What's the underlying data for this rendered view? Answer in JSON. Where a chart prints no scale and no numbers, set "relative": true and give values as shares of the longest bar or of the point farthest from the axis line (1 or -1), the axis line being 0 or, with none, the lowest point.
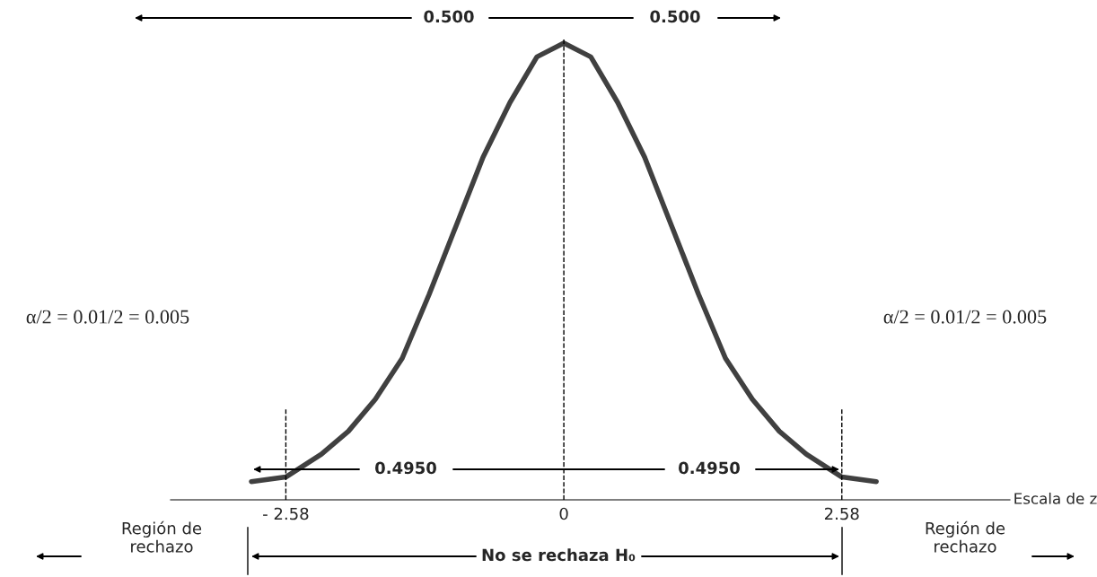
{
  "chart_data": {
    "type": "line",
    "relative": true,
    "xlabel": "Escala de z",
    "x": [
      -2.9,
      -2.58,
      -2.25,
      -2,
      -1.75,
      -1.5,
      -1.25,
      -1,
      -0.75,
      -0.5,
      -0.25,
      0,
      0.25,
      0.5,
      0.75,
      1,
      1.25,
      1.5,
      1.75,
      2,
      2.25,
      2.58,
      2.9
    ],
    "series": [
      {
        "color": "#404040",
        "values": [
          0.04,
          0.05,
          0.1,
          0.15,
          0.22,
          0.31,
          0.45,
          0.6,
          0.75,
          0.87,
          0.97,
          1,
          0.97,
          0.87,
          0.75,
          0.6,
          0.45,
          0.31,
          0.22,
          0.15,
          0.1,
          0.05,
          0.04
        ]
      }
    ],
    "xlim": [
      -3.65,
      4.14
    ],
    "xticks": [
      {
        "value": -2.58,
        "label": "- 2.58"
      },
      0,
      2.58
    ],
    "tick_labels": "x",
    "grid": false,
    "legend": false,
    "marker": "none",
    "line_style": "solid",
    "ref_lines": [
      {
        "axis": "x",
        "value": -2.58,
        "line_style": "dashed",
        "color": "#000000"
      },
      {
        "axis": "x",
        "value": 0,
        "line_style": "dashed",
        "color": "#000000"
      },
      {
        "axis": "x",
        "value": 2.58,
        "line_style": "dashed",
        "color": "#000000"
      }
    ],
    "annotations": [
      "0.500",
      "0.500",
      "0.4950",
      "0.4950",
      "α/2 = 0.01/2 = 0.005",
      "α/2 = 0.01/2 = 0.005",
      "Región de\nrechazo",
      "No se rechaza H₀",
      "Región de\nrechazo"
    ]
  }
}
